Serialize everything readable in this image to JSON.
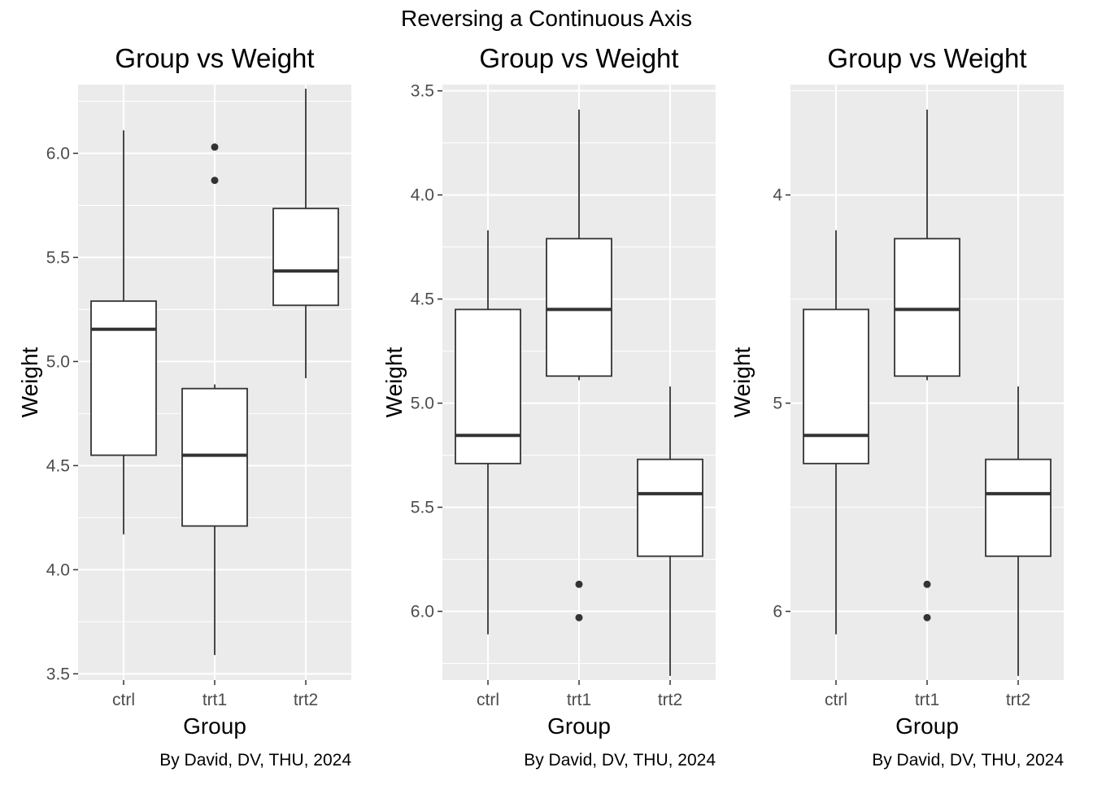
{
  "figure": {
    "title": "Reversing a Continuous Axis"
  },
  "chart_data": [
    {
      "type": "boxplot",
      "title": "Group vs Weight",
      "xlabel": "Group",
      "ylabel": "Weight",
      "caption": "By David, DV, THU, 2024",
      "categories": [
        "ctrl",
        "trt1",
        "trt2"
      ],
      "y_reversed": false,
      "ylim": [
        3.47,
        6.33
      ],
      "yticks": [
        3.5,
        4.0,
        4.5,
        5.0,
        5.5,
        6.0
      ],
      "ytick_labels": [
        "3.5",
        "4.0",
        "4.5",
        "5.0",
        "5.5",
        "6.0"
      ],
      "grid": true,
      "boxes": [
        {
          "category": "ctrl",
          "lower_whisker": 4.17,
          "q1": 4.55,
          "median": 5.155,
          "q3": 5.29,
          "upper_whisker": 6.11,
          "outliers": []
        },
        {
          "category": "trt1",
          "lower_whisker": 3.59,
          "q1": 4.21,
          "median": 4.55,
          "q3": 4.87,
          "upper_whisker": 4.89,
          "outliers": [
            5.87,
            6.03
          ]
        },
        {
          "category": "trt2",
          "lower_whisker": 4.92,
          "q1": 5.27,
          "median": 5.435,
          "q3": 5.735,
          "upper_whisker": 6.31,
          "outliers": []
        }
      ]
    },
    {
      "type": "boxplot",
      "title": "Group vs Weight",
      "xlabel": "Group",
      "ylabel": "Weight",
      "caption": "By David, DV, THU, 2024",
      "categories": [
        "ctrl",
        "trt1",
        "trt2"
      ],
      "y_reversed": true,
      "ylim": [
        3.47,
        6.33
      ],
      "yticks": [
        3.5,
        4.0,
        4.5,
        5.0,
        5.5,
        6.0
      ],
      "ytick_labels": [
        "3.5",
        "4.0",
        "4.5",
        "5.0",
        "5.5",
        "6.0"
      ],
      "grid": true,
      "boxes": [
        {
          "category": "ctrl",
          "lower_whisker": 4.17,
          "q1": 4.55,
          "median": 5.155,
          "q3": 5.29,
          "upper_whisker": 6.11,
          "outliers": []
        },
        {
          "category": "trt1",
          "lower_whisker": 3.59,
          "q1": 4.21,
          "median": 4.55,
          "q3": 4.87,
          "upper_whisker": 4.89,
          "outliers": [
            5.87,
            6.03
          ]
        },
        {
          "category": "trt2",
          "lower_whisker": 4.92,
          "q1": 5.27,
          "median": 5.435,
          "q3": 5.735,
          "upper_whisker": 6.31,
          "outliers": []
        }
      ]
    },
    {
      "type": "boxplot",
      "title": "Group vs Weight",
      "xlabel": "Group",
      "ylabel": "Weight",
      "caption": "By David, DV, THU, 2024",
      "categories": [
        "ctrl",
        "trt1",
        "trt2"
      ],
      "y_reversed": true,
      "ylim": [
        3.47,
        6.33
      ],
      "yticks": [
        4,
        5,
        6
      ],
      "ytick_labels": [
        "4",
        "5",
        "6"
      ],
      "grid": true,
      "boxes": [
        {
          "category": "ctrl",
          "lower_whisker": 4.17,
          "q1": 4.55,
          "median": 5.155,
          "q3": 5.29,
          "upper_whisker": 6.11,
          "outliers": []
        },
        {
          "category": "trt1",
          "lower_whisker": 3.59,
          "q1": 4.21,
          "median": 4.55,
          "q3": 4.87,
          "upper_whisker": 4.89,
          "outliers": [
            5.87,
            6.03
          ]
        },
        {
          "category": "trt2",
          "lower_whisker": 4.92,
          "q1": 5.27,
          "median": 5.435,
          "q3": 5.735,
          "upper_whisker": 6.31,
          "outliers": []
        }
      ]
    }
  ]
}
